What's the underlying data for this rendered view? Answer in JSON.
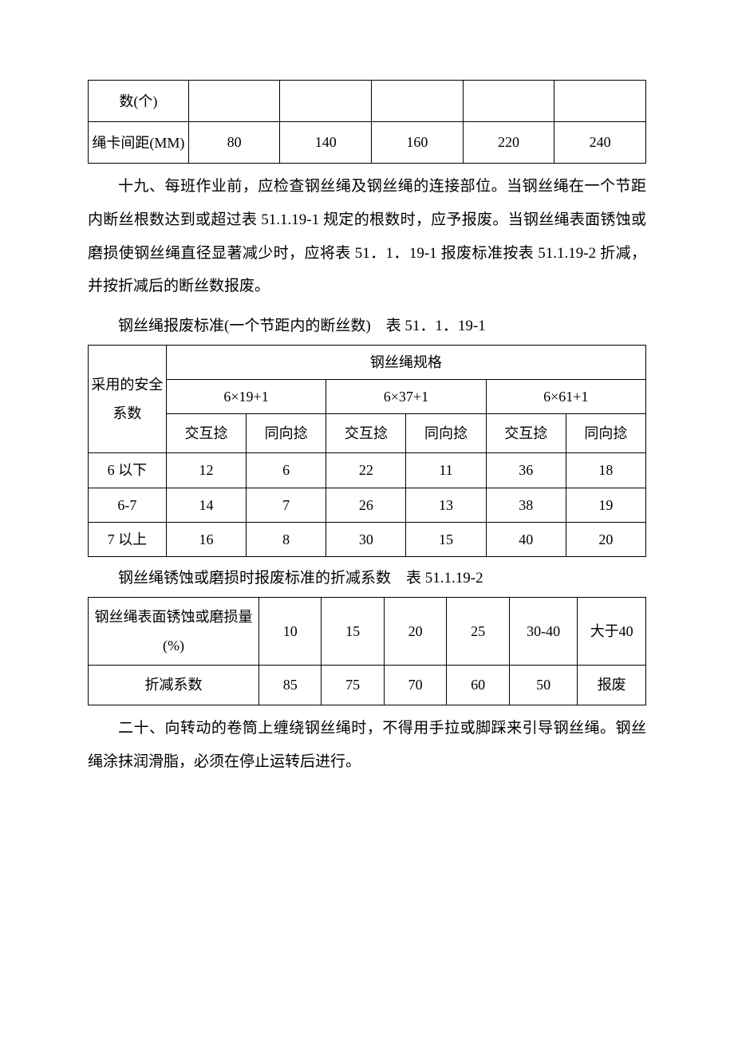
{
  "table1": {
    "row1_label": "数(个)",
    "row1_cells": [
      "",
      "",
      "",
      "",
      ""
    ],
    "row2_label": "绳卡间距(MM)",
    "row2_cells": [
      "80",
      "140",
      "160",
      "220",
      "240"
    ]
  },
  "paragraph1": "十九、每班作业前，应检查钢丝绳及钢丝绳的连接部位。当钢丝绳在一个节距内断丝根数达到或超过表 51.1.19-1 规定的根数时，应予报废。当钢丝绳表面锈蚀或磨损使钢丝绳直径显著减少时，应将表 51．1．19-1 报废标准按表 51.1.19-2 折减，并按折减后的断丝数报废。",
  "caption2": "钢丝绳报废标准(一个节距内的断丝数)　表 51．1．19-1",
  "table2": {
    "rowhead": "采用的安全系数",
    "spec_header": "钢丝绳规格",
    "spec_groups": [
      "6×19+1",
      "6×37+1",
      "6×61+1"
    ],
    "sub_headers": [
      "交互捻",
      "同向捻",
      "交互捻",
      "同向捻",
      "交互捻",
      "同向捻"
    ],
    "rows": [
      {
        "label": "6 以下",
        "cells": [
          "12",
          "6",
          "22",
          "11",
          "36",
          "18"
        ]
      },
      {
        "label": "6-7",
        "cells": [
          "14",
          "7",
          "26",
          "13",
          "38",
          "19"
        ]
      },
      {
        "label": "7 以上",
        "cells": [
          "16",
          "8",
          "30",
          "15",
          "40",
          "20"
        ]
      }
    ]
  },
  "caption3": "钢丝绳锈蚀或磨损时报废标准的折减系数　表 51.1.19-2",
  "table3": {
    "row1_label": "钢丝绳表面锈蚀或磨损量(%)",
    "row1_cells": [
      "10",
      "15",
      "20",
      "25",
      "30-40",
      "大于40"
    ],
    "row2_label": "折减系数",
    "row2_cells": [
      "85",
      "75",
      "70",
      "60",
      "50",
      "报废"
    ]
  },
  "paragraph2": "二十、向转动的卷筒上缠绕钢丝绳时，不得用手拉或脚踩来引导钢丝绳。钢丝绳涂抹润滑脂，必须在停止运转后进行。"
}
